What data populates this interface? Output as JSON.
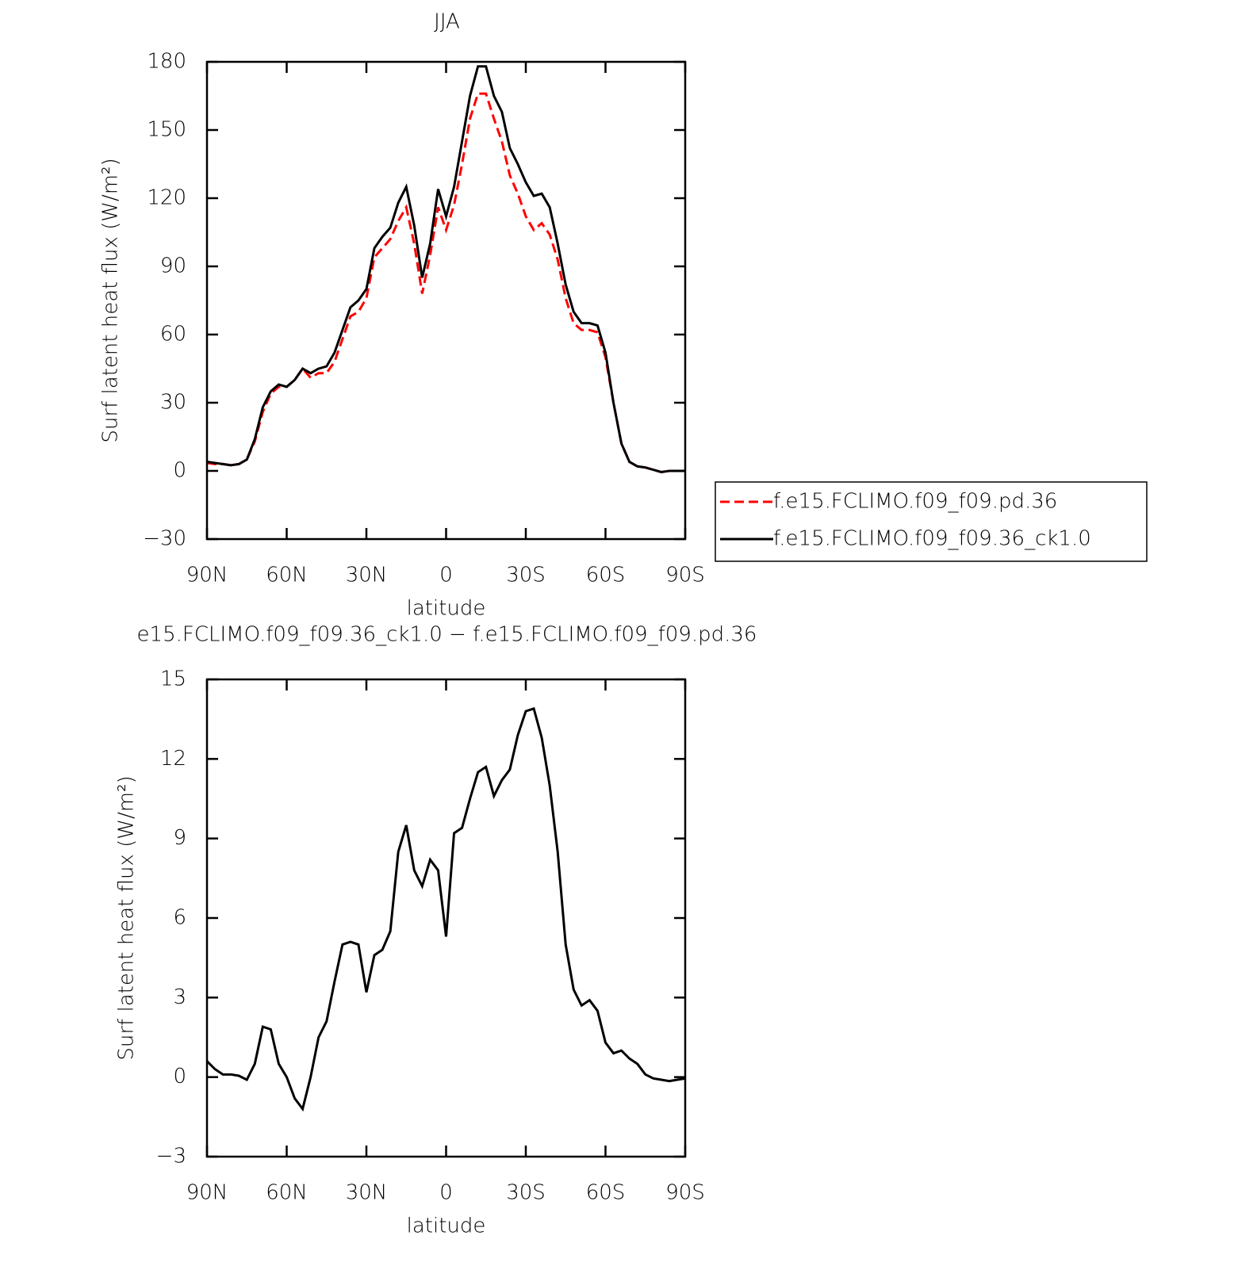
{
  "chart_data": [
    {
      "type": "line",
      "title": "JJA",
      "x_label": "latitude",
      "y_label": "Surf latent heat flux (W/m²)",
      "x": [
        90,
        87,
        84,
        81,
        78,
        75,
        72,
        69,
        66,
        63,
        60,
        57,
        54,
        51,
        48,
        45,
        42,
        39,
        36,
        33,
        30,
        27,
        24,
        21,
        18,
        15,
        12,
        9,
        6,
        3,
        0,
        -3,
        -6,
        -9,
        -12,
        -15,
        -18,
        -21,
        -24,
        -27,
        -30,
        -33,
        -36,
        -39,
        -42,
        -45,
        -48,
        -51,
        -54,
        -57,
        -60,
        -63,
        -66,
        -69,
        -72,
        -75,
        -78,
        -81,
        -84,
        -87,
        -90
      ],
      "xlim": [
        90,
        -90
      ],
      "xticks": [
        {
          "value": 90,
          "label": "90N"
        },
        {
          "value": 60,
          "label": "60N"
        },
        {
          "value": 30,
          "label": "30N"
        },
        0,
        {
          "value": -30,
          "label": "30S"
        },
        {
          "value": -60,
          "label": "60S"
        },
        {
          "value": -90,
          "label": "90S"
        }
      ],
      "ylim": [
        -30,
        180
      ],
      "yticks": [
        {
          "value": -30,
          "label": "−30"
        },
        0,
        30,
        60,
        90,
        120,
        150,
        180
      ],
      "legend": "right",
      "series": [
        {
          "name": "f.e15.FCLIMO.f09_f09.pd.36",
          "color": "#ff0000",
          "linestyle": "dashed",
          "values": [
            3.5,
            3,
            3,
            2.5,
            3,
            5,
            13,
            26,
            34,
            37,
            37,
            40,
            45,
            41,
            43,
            43,
            48,
            58,
            68,
            70,
            76,
            94,
            98,
            102,
            110,
            116,
            100,
            78,
            95,
            116,
            106,
            117,
            135,
            155,
            166,
            166,
            155,
            145,
            130,
            122,
            112,
            106,
            109,
            104,
            93,
            76,
            65,
            62,
            62,
            61,
            50,
            30,
            12,
            4,
            2,
            1.5,
            0.5,
            -0.5,
            0,
            0,
            0
          ]
        },
        {
          "name": "f.e15.FCLIMO.f09_f09.36_ck1.0",
          "color": "#000000",
          "linestyle": "solid",
          "values": [
            4,
            3.5,
            3,
            2.5,
            3,
            5,
            14,
            28,
            35,
            38,
            37,
            40,
            45,
            43,
            45,
            46,
            52,
            62,
            72,
            75,
            80,
            98,
            103,
            107,
            118,
            125,
            108,
            85,
            100,
            124,
            112,
            125,
            145,
            165,
            178,
            178,
            165,
            158,
            142,
            135,
            127,
            121,
            122,
            116,
            100,
            82,
            70,
            65,
            65,
            64,
            52,
            30,
            12,
            4,
            2,
            1.5,
            0.5,
            -0.5,
            0,
            0,
            0
          ]
        }
      ]
    },
    {
      "type": "line",
      "title": "e15.FCLIMO.f09_f09.36_ck1.0 − f.e15.FCLIMO.f09_f09.pd.36",
      "x_label": "latitude",
      "y_label": "Surf latent heat flux (W/m²)",
      "x": [
        90,
        87,
        84,
        81,
        78,
        75,
        72,
        69,
        66,
        63,
        60,
        57,
        54,
        51,
        48,
        45,
        42,
        39,
        36,
        33,
        30,
        27,
        24,
        21,
        18,
        15,
        12,
        9,
        6,
        3,
        0,
        -3,
        -6,
        -9,
        -12,
        -15,
        -18,
        -21,
        -24,
        -27,
        -30,
        -33,
        -36,
        -39,
        -42,
        -45,
        -48,
        -51,
        -54,
        -57,
        -60,
        -63,
        -66,
        -69,
        -72,
        -75,
        -78,
        -81,
        -84,
        -87,
        -90
      ],
      "xlim": [
        90,
        -90
      ],
      "xticks": [
        {
          "value": 90,
          "label": "90N"
        },
        {
          "value": 60,
          "label": "60N"
        },
        {
          "value": 30,
          "label": "30N"
        },
        0,
        {
          "value": -30,
          "label": "30S"
        },
        {
          "value": -60,
          "label": "60S"
        },
        {
          "value": -90,
          "label": "90S"
        }
      ],
      "ylim": [
        -3,
        15
      ],
      "yticks": [
        {
          "value": -3,
          "label": "−3"
        },
        0,
        3,
        6,
        9,
        12,
        15
      ],
      "color": "#000000",
      "values": [
        0.6,
        0.3,
        0.1,
        0.1,
        0.05,
        -0.1,
        0.5,
        1.9,
        1.8,
        0.5,
        0,
        -0.8,
        -1.2,
        0,
        1.5,
        2.1,
        3.6,
        5.0,
        5.1,
        5.0,
        3.2,
        4.6,
        4.8,
        5.5,
        8.5,
        9.5,
        7.8,
        7.2,
        8.2,
        7.8,
        5.3,
        9.2,
        9.4,
        10.5,
        11.5,
        11.7,
        10.6,
        11.2,
        11.6,
        12.9,
        13.8,
        13.9,
        12.8,
        11,
        8.5,
        5,
        3.3,
        2.7,
        2.9,
        2.5,
        1.3,
        0.9,
        1.0,
        0.7,
        0.5,
        0.1,
        -0.05,
        -0.1,
        -0.15,
        -0.1,
        -0.05
      ]
    }
  ]
}
